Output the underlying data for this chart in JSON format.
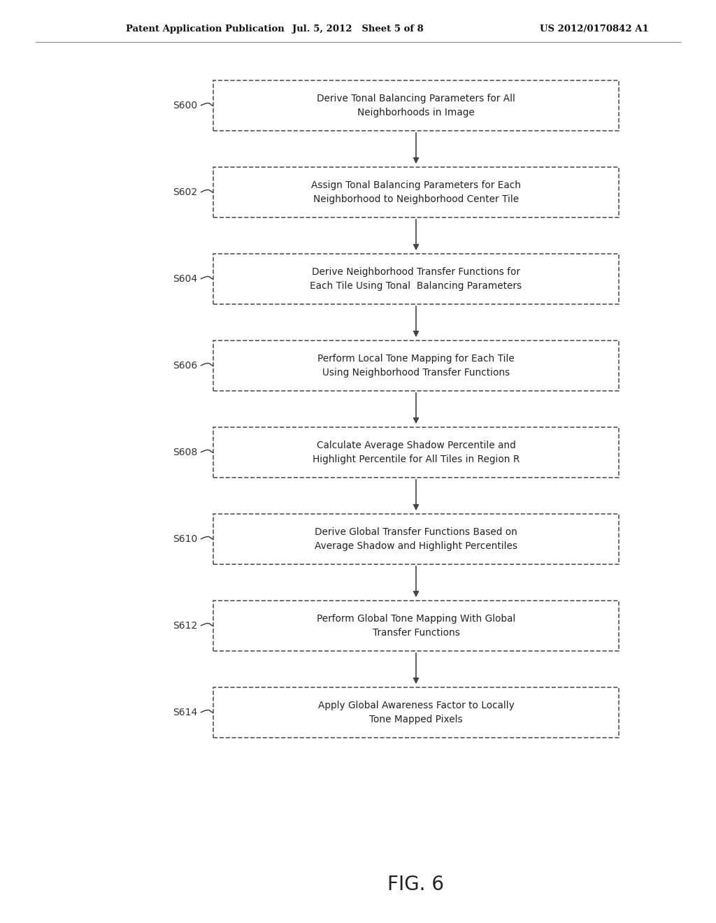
{
  "header_left": "Patent Application Publication",
  "header_mid": "Jul. 5, 2012   Sheet 5 of 8",
  "header_right": "US 2012/0170842 A1",
  "figure_label": "FIG. 6",
  "steps": [
    {
      "id": "S600",
      "lines": [
        "Derive Tonal Balancing Parameters for All",
        "Neighborhoods in Image"
      ]
    },
    {
      "id": "S602",
      "lines": [
        "Assign Tonal Balancing Parameters for Each",
        "Neighborhood to Neighborhood Center Tile"
      ]
    },
    {
      "id": "S604",
      "lines": [
        "Derive Neighborhood Transfer Functions for",
        "Each Tile Using Tonal  Balancing Parameters"
      ]
    },
    {
      "id": "S606",
      "lines": [
        "Perform Local Tone Mapping for Each Tile",
        "Using Neighborhood Transfer Functions"
      ]
    },
    {
      "id": "S608",
      "lines": [
        "Calculate Average Shadow Percentile and",
        "Highlight Percentile for All Tiles in Region R"
      ]
    },
    {
      "id": "S610",
      "lines": [
        "Derive Global Transfer Functions Based on",
        "Average Shadow and Highlight Percentiles"
      ]
    },
    {
      "id": "S612",
      "lines": [
        "Perform Global Tone Mapping With Global",
        "Transfer Functions"
      ]
    },
    {
      "id": "S614",
      "lines": [
        "Apply Global Awareness Factor to Locally",
        "Tone Mapped Pixels"
      ]
    }
  ],
  "box_color": "white",
  "box_edge_color": "#555555",
  "text_color": "#222222",
  "arrow_color": "#444444",
  "header_color": "#111111",
  "label_color": "#333333",
  "background_color": "white"
}
